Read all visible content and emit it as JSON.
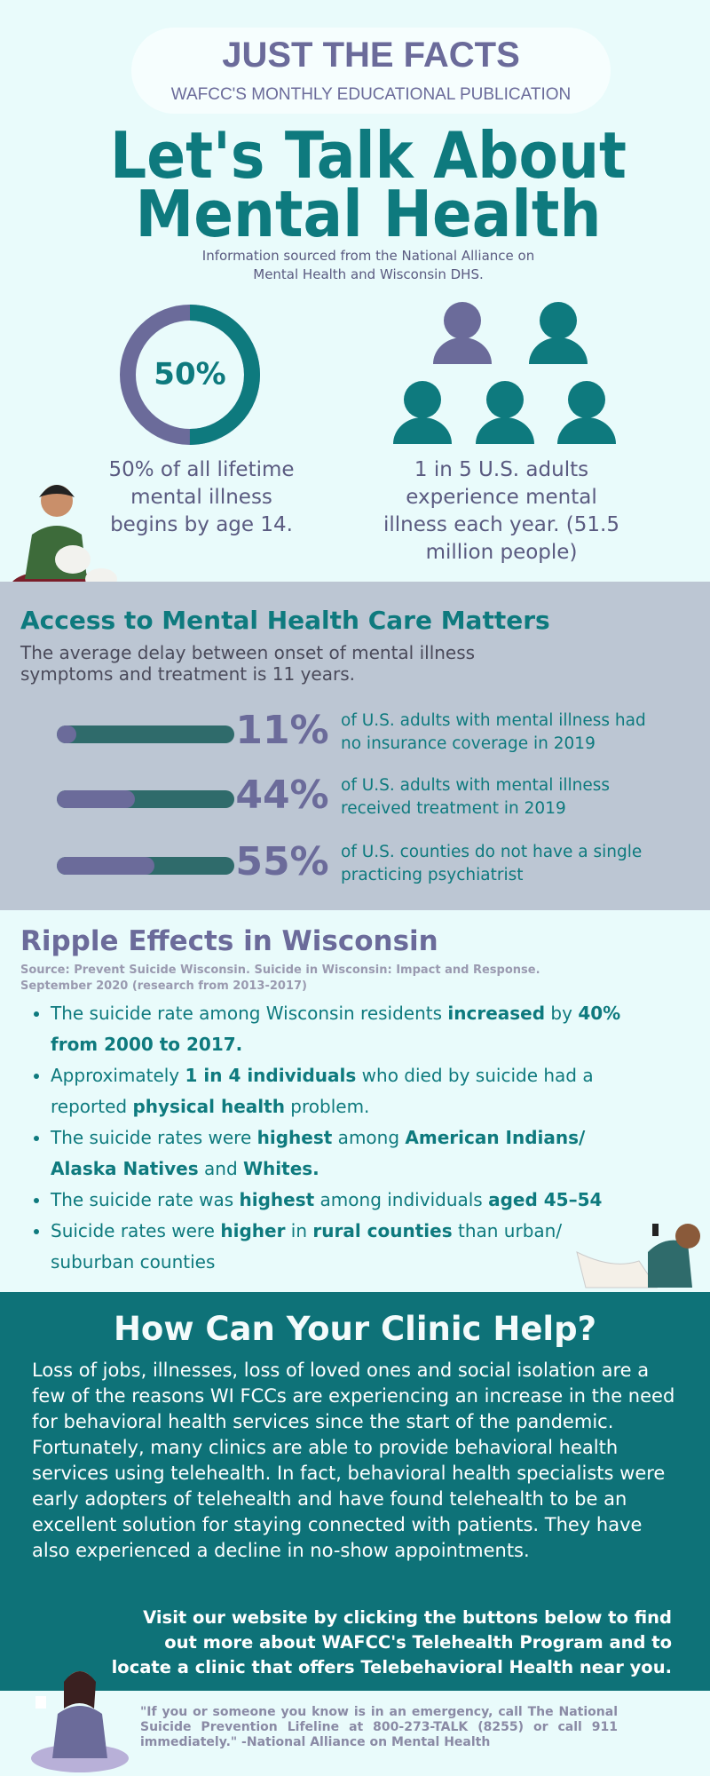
{
  "header": {
    "title": "JUST THE FACTS",
    "subtitle": "WAFCC'S MONTHLY EDUCATIONAL PUBLICATION"
  },
  "hero": {
    "title_lines": [
      "Let's Talk About",
      "Mental Health"
    ],
    "source": "Information sourced from the National Alliance on Mental Health and Wisconsin DHS."
  },
  "facts": [
    {
      "value": 50,
      "label": "50%",
      "text": "50% of all lifetime mental illness begins by age 14."
    },
    {
      "text": "1 in 5 U.S. adults experience mental illness each year. (51.5 million people)"
    }
  ],
  "access": {
    "title": "Access to Mental Health Care Matters",
    "subtitle": "The average delay between onset of mental illness symptoms and treatment is 11 years.",
    "stats": [
      {
        "value": 11,
        "label": "11%",
        "text": "of U.S. adults with mental illness had no insurance coverage in 2019"
      },
      {
        "value": 44,
        "label": "44%",
        "text": "of U.S. adults with mental illness received treatment in 2019"
      },
      {
        "value": 55,
        "label": "55%",
        "text": "of U.S. counties do not have a single practicing psychiatrist"
      }
    ]
  },
  "ripple": {
    "title": "Ripple Effects in Wisconsin",
    "source": "Source: Prevent Suicide Wisconsin. Suicide in Wisconsin: Impact and Response. September 2020 (research from 2013-2017)",
    "bullets": [
      [
        {
          "text": "The suicide rate among Wisconsin residents "
        },
        {
          "text": "increased",
          "bold": true
        },
        {
          "text": " by "
        },
        {
          "text": "40% from 2000 to 2017.",
          "bold": true
        }
      ],
      [
        {
          "text": "Approximately "
        },
        {
          "text": "1 in 4 individuals",
          "bold": true
        },
        {
          "text": " who died by suicide had a reported "
        },
        {
          "text": "physical health",
          "bold": true
        },
        {
          "text": " problem."
        }
      ],
      [
        {
          "text": "The suicide rates were "
        },
        {
          "text": "highest",
          "bold": true
        },
        {
          "text": " among "
        },
        {
          "text": "American Indians/ Alaska Natives",
          "bold": true
        },
        {
          "text": " and "
        },
        {
          "text": "Whites.",
          "bold": true
        }
      ],
      [
        {
          "text": "The suicide rate was "
        },
        {
          "text": "highest",
          "bold": true
        },
        {
          "text": " among individuals "
        },
        {
          "text": "aged 45–54",
          "bold": true
        }
      ],
      [
        {
          "text": "Suicide rates were "
        },
        {
          "text": "higher",
          "bold": true
        },
        {
          "text": " in "
        },
        {
          "text": "rural counties",
          "bold": true
        },
        {
          "text": " than urban/ suburban counties"
        }
      ]
    ]
  },
  "help": {
    "title": "How Can Your Clinic Help?",
    "body": "Loss of jobs, illnesses, loss of loved ones and social isolation are a few of the reasons WI FCCs are experiencing an increase in the need for behavioral health services since the start of the pandemic. Fortunately, many clinics are able to provide behavioral health services using telehealth. In fact, behavioral health specialists were early adopters of telehealth and have found telehealth to be an excellent solution for staying connected with patients. They have also experienced a decline in no-show appointments.",
    "cta": "Visit our website by clicking the buttons below to find out more about WAFCC's Telehealth Program and to locate a clinic that offers Telebehavioral Health near you."
  },
  "footer": {
    "quote": "\"If you or someone you know is in an emergency, call The National Suicide Prevention Lifeline at 800-273-TALK (8255) or call 911 immediately.\" -National Alliance on Mental Health"
  }
}
